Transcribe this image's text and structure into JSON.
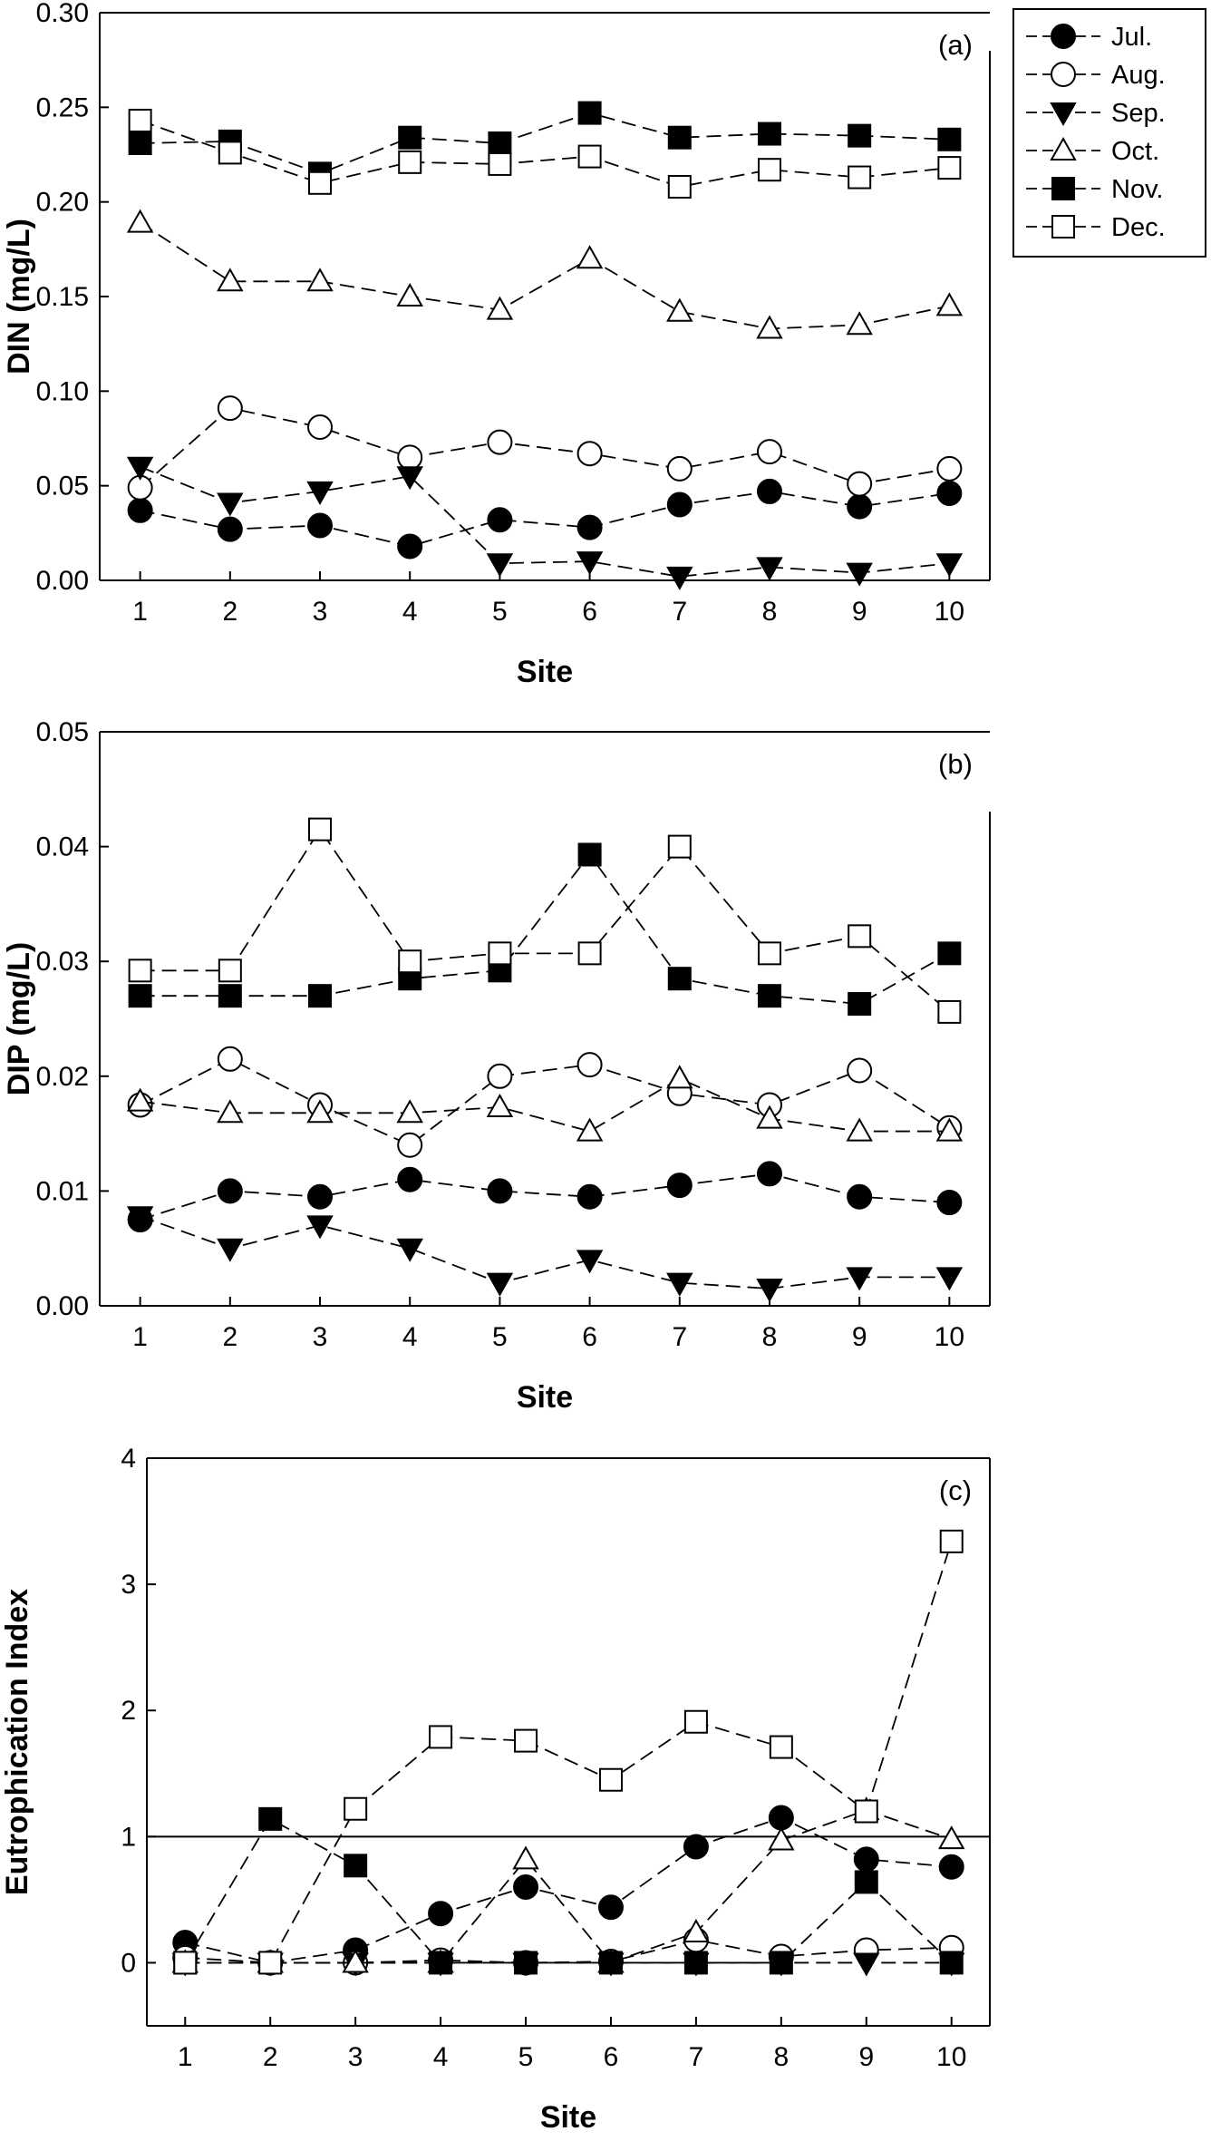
{
  "chart_data": [
    {
      "type": "line",
      "panel_label": "(a)",
      "xlabel": "Site",
      "ylabel": "DIN (mg/L)",
      "x": [
        1,
        2,
        3,
        4,
        5,
        6,
        7,
        8,
        9,
        10
      ],
      "ylim": [
        0,
        0.3
      ],
      "yticks": [
        "0.00",
        "0.05",
        "0.10",
        "0.15",
        "0.20",
        "0.25",
        "0.30"
      ],
      "legend_position": "top-right (outside plot)",
      "grid": false,
      "series": [
        {
          "name": "Jul.",
          "marker": "filled-circle",
          "values": [
            0.037,
            0.027,
            0.029,
            0.018,
            0.032,
            0.028,
            0.04,
            0.047,
            0.039,
            0.046
          ]
        },
        {
          "name": "Aug.",
          "marker": "open-circle",
          "values": [
            0.049,
            0.091,
            0.081,
            0.065,
            0.073,
            0.067,
            0.059,
            0.068,
            0.051,
            0.059
          ]
        },
        {
          "name": "Sep.",
          "marker": "filled-triangle-down",
          "values": [
            0.06,
            0.041,
            0.047,
            0.055,
            0.009,
            0.01,
            0.002,
            0.007,
            0.004,
            0.009
          ]
        },
        {
          "name": "Oct.",
          "marker": "open-triangle-up",
          "values": [
            0.189,
            0.158,
            0.158,
            0.15,
            0.143,
            0.17,
            0.142,
            0.133,
            0.135,
            0.145
          ]
        },
        {
          "name": "Nov.",
          "marker": "filled-square",
          "values": [
            0.231,
            0.232,
            0.215,
            0.234,
            0.231,
            0.247,
            0.234,
            0.236,
            0.235,
            0.233
          ]
        },
        {
          "name": "Dec.",
          "marker": "open-square",
          "values": [
            0.243,
            0.226,
            0.21,
            0.221,
            0.22,
            0.224,
            0.208,
            0.217,
            0.213,
            0.218
          ]
        }
      ]
    },
    {
      "type": "line",
      "panel_label": "(b)",
      "xlabel": "Site",
      "ylabel": "DIP (mg/L)",
      "x": [
        1,
        2,
        3,
        4,
        5,
        6,
        7,
        8,
        9,
        10
      ],
      "ylim": [
        0,
        0.05
      ],
      "yticks": [
        "0.00",
        "0.01",
        "0.02",
        "0.03",
        "0.04",
        "0.05"
      ],
      "grid": false,
      "series": [
        {
          "name": "Jul.",
          "marker": "filled-circle",
          "values": [
            0.0075,
            0.01,
            0.0095,
            0.011,
            0.01,
            0.0095,
            0.0105,
            0.0115,
            0.0095,
            0.009
          ]
        },
        {
          "name": "Aug.",
          "marker": "open-circle",
          "values": [
            0.0175,
            0.0215,
            0.0175,
            0.014,
            0.02,
            0.021,
            0.0185,
            0.0175,
            0.0205,
            0.0155
          ]
        },
        {
          "name": "Sep.",
          "marker": "filled-triangle-down",
          "values": [
            0.0078,
            0.005,
            0.007,
            0.005,
            0.002,
            0.004,
            0.002,
            0.0015,
            0.0025,
            0.0025
          ]
        },
        {
          "name": "Oct.",
          "marker": "open-triangle-up",
          "values": [
            0.0178,
            0.0168,
            0.0168,
            0.0168,
            0.0173,
            0.0152,
            0.0198,
            0.0163,
            0.0152,
            0.0152
          ]
        },
        {
          "name": "Nov.",
          "marker": "filled-square",
          "values": [
            0.027,
            0.027,
            0.027,
            0.0285,
            0.0292,
            0.0393,
            0.0285,
            0.027,
            0.0263,
            0.0307
          ]
        },
        {
          "name": "Dec.",
          "marker": "open-square",
          "values": [
            0.0292,
            0.0292,
            0.0415,
            0.03,
            0.0307,
            0.0307,
            0.04,
            0.0307,
            0.0322,
            0.0256
          ]
        }
      ]
    },
    {
      "type": "line",
      "panel_label": "(c)",
      "xlabel": "Site",
      "ylabel": "Eutrophication Index",
      "x": [
        1,
        2,
        3,
        4,
        5,
        6,
        7,
        8,
        9,
        10
      ],
      "ylim": [
        -0.5,
        4
      ],
      "yticks": [
        "0",
        "1",
        "2",
        "3",
        "4"
      ],
      "reference_line": 1,
      "grid": false,
      "series": [
        {
          "name": "Jul.",
          "marker": "filled-circle",
          "values": [
            0.16,
            0.0,
            0.1,
            0.39,
            0.6,
            0.44,
            0.92,
            1.15,
            0.82,
            0.76
          ]
        },
        {
          "name": "Aug.",
          "marker": "open-circle",
          "values": [
            0.04,
            0.0,
            0.0,
            0.02,
            0.0,
            0.01,
            0.18,
            0.05,
            0.1,
            0.12
          ]
        },
        {
          "name": "Sep.",
          "marker": "filled-triangle-down",
          "values": [
            0.0,
            0.0,
            0.0,
            0.0,
            0.0,
            0.0,
            0.0,
            0.0,
            0.0,
            0.0
          ]
        },
        {
          "name": "Oct.",
          "marker": "open-triangle-up",
          "values": [
            0.0,
            0.0,
            0.0,
            0.0,
            0.82,
            0.0,
            0.24,
            0.97,
            1.21,
            0.98
          ]
        },
        {
          "name": "Nov.",
          "marker": "filled-square",
          "values": [
            0.0,
            1.14,
            0.77,
            0.0,
            0.0,
            0.0,
            0.0,
            0.0,
            0.64,
            0.0
          ]
        },
        {
          "name": "Dec.",
          "marker": "open-square",
          "values": [
            0.0,
            0.0,
            1.22,
            1.79,
            1.76,
            1.45,
            1.91,
            1.71,
            1.2,
            3.34
          ]
        }
      ]
    }
  ],
  "legend": {
    "entries": [
      {
        "name": "Jul.",
        "marker": "filled-circle"
      },
      {
        "name": "Aug.",
        "marker": "open-circle"
      },
      {
        "name": "Sep.",
        "marker": "filled-triangle-down"
      },
      {
        "name": "Oct.",
        "marker": "open-triangle-up"
      },
      {
        "name": "Nov.",
        "marker": "filled-square"
      },
      {
        "name": "Dec.",
        "marker": "open-square"
      }
    ]
  },
  "colors": {
    "line": "#000000",
    "background": "#ffffff"
  }
}
